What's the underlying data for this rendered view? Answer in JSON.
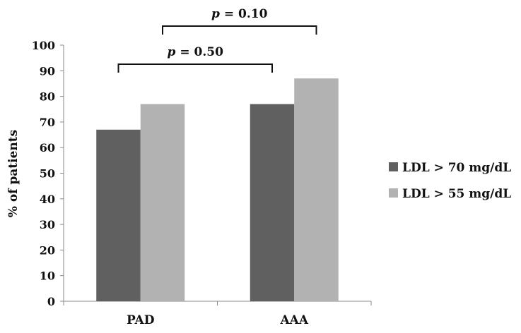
{
  "chart_data": {
    "type": "bar",
    "categories": [
      "PAD",
      "AAA"
    ],
    "series": [
      {
        "name": "LDL >  70 mg/dL",
        "values": [
          67,
          77
        ],
        "color": "#606060"
      },
      {
        "name": "LDL >  55 mg/dL",
        "values": [
          77,
          87
        ],
        "color": "#b2b2b2"
      }
    ],
    "ylabel": "% of patients",
    "xlabel": "",
    "ylim": [
      0,
      100
    ],
    "yticks": [
      0,
      10,
      20,
      30,
      40,
      50,
      60,
      70,
      80,
      90,
      100
    ],
    "grid": false,
    "legend": "right",
    "annotations": [
      {
        "p_symbol": "p",
        "text": " = 0.50",
        "from": "PAD LDL > 70 mg/dL",
        "to": "AAA LDL > 70 mg/dL"
      },
      {
        "p_symbol": "p",
        "text": " = 0.10",
        "from": "PAD LDL > 55 mg/dL",
        "to": "AAA LDL > 55 mg/dL"
      }
    ]
  }
}
